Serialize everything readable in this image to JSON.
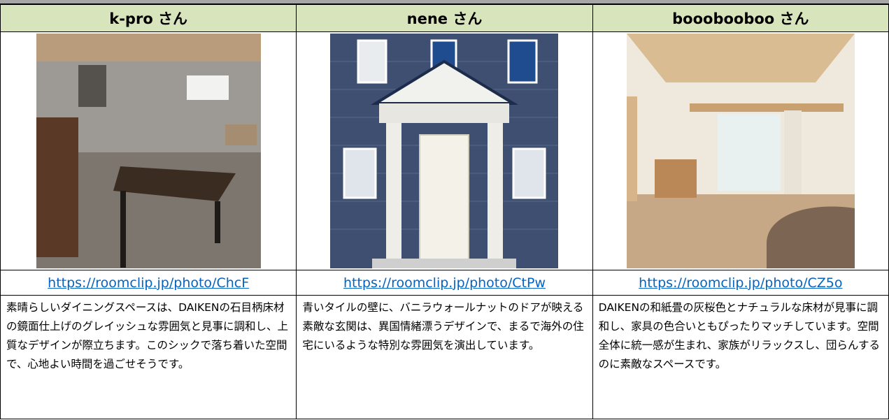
{
  "table": {
    "headers": [
      "k-pro さん",
      "nene さん",
      "booobooboo さん"
    ],
    "links": [
      "https://roomclip.jp/photo/ChcF",
      "https://roomclip.jp/photo/CtPw",
      "https://roomclip.jp/photo/CZ5o"
    ],
    "descriptions": [
      "素晴らしいダイニングスペースは、DAIKENの石目柄床材の鏡面仕上げのグレイッシュな雰囲気と見事に調和し、上質なデザインが際立ちます。このシックで落ち着いた空間で、心地よい時間を過ごせそうです。",
      "青いタイルの壁に、バニラウォールナットのドアが映える素敵な玄関は、異国情緒漂うデザインで、まるで海外の住宅にいるような特別な雰囲気を演出しています。",
      "DAIKENの和紙畳の灰桜色とナチュラルな床材が見事に調和し、家具の色合いともぴったりマッチしています。空間全体に統一感が生まれ、家族がリラックスし、団らんするのに素敵なスペースです。"
    ]
  }
}
